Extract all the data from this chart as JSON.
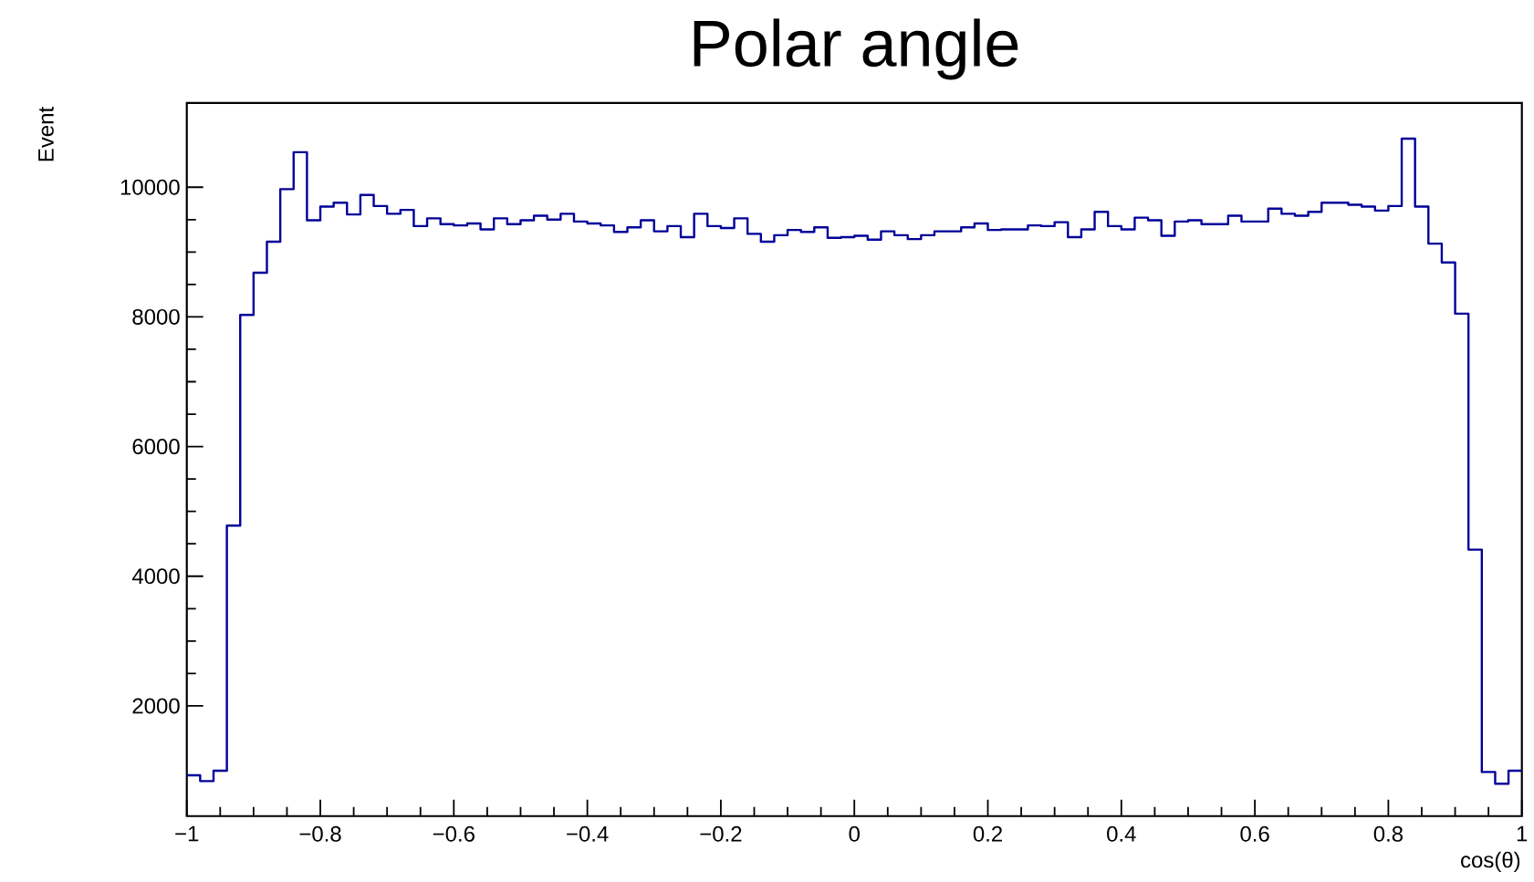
{
  "chart_data": {
    "type": "histogram",
    "title": "Polar angle",
    "xlabel": "cos(θ)",
    "ylabel": "Event",
    "color": "#000099",
    "bins": [
      -1.0,
      -0.98,
      -0.96,
      -0.94,
      -0.92,
      -0.9,
      -0.88,
      -0.86,
      -0.84,
      -0.82,
      -0.8,
      -0.78,
      -0.76,
      -0.74,
      -0.72,
      -0.7,
      -0.68,
      -0.66,
      -0.64,
      -0.62,
      -0.6,
      -0.58,
      -0.56,
      -0.54,
      -0.52,
      -0.5,
      -0.48,
      -0.46,
      -0.44,
      -0.42,
      -0.4,
      -0.38,
      -0.36,
      -0.34,
      -0.32,
      -0.3,
      -0.28,
      -0.26,
      -0.24,
      -0.22,
      -0.2,
      -0.18,
      -0.16,
      -0.14,
      -0.12,
      -0.1,
      -0.08,
      -0.06,
      -0.04,
      -0.02,
      0.0,
      0.02,
      0.04,
      0.06,
      0.08,
      0.1,
      0.12,
      0.14,
      0.16,
      0.18,
      0.2,
      0.22,
      0.24,
      0.26,
      0.28,
      0.3,
      0.32,
      0.34,
      0.36,
      0.38,
      0.4,
      0.42,
      0.44,
      0.46,
      0.48,
      0.5,
      0.52,
      0.54,
      0.56,
      0.58,
      0.6,
      0.62,
      0.64,
      0.66,
      0.68,
      0.7,
      0.72,
      0.74,
      0.76,
      0.78,
      0.8,
      0.82,
      0.84,
      0.86,
      0.88,
      0.9,
      0.92,
      0.94,
      0.96,
      0.98,
      1.0
    ],
    "values": [
      930,
      840,
      1000,
      4780,
      8030,
      8680,
      9160,
      9970,
      10540,
      9490,
      9700,
      9760,
      9580,
      9880,
      9710,
      9590,
      9650,
      9400,
      9520,
      9430,
      9410,
      9440,
      9350,
      9520,
      9430,
      9490,
      9560,
      9500,
      9590,
      9470,
      9440,
      9410,
      9310,
      9380,
      9490,
      9320,
      9400,
      9230,
      9590,
      9400,
      9370,
      9520,
      9280,
      9160,
      9260,
      9340,
      9310,
      9380,
      9220,
      9230,
      9250,
      9190,
      9320,
      9260,
      9200,
      9260,
      9320,
      9320,
      9380,
      9440,
      9340,
      9350,
      9350,
      9410,
      9400,
      9460,
      9230,
      9350,
      9620,
      9400,
      9350,
      9530,
      9490,
      9250,
      9470,
      9490,
      9430,
      9430,
      9560,
      9470,
      9470,
      9670,
      9590,
      9560,
      9620,
      9760,
      9760,
      9730,
      9700,
      9640,
      9710,
      10750,
      9700,
      9130,
      8840,
      8050,
      4410,
      980,
      800,
      1000
    ],
    "xlim": [
      -1,
      1
    ],
    "ylim": [
      300,
      11300
    ],
    "xticks": [
      {
        "value": -1,
        "label": "−1"
      },
      {
        "value": -0.8,
        "label": "−0.8"
      },
      {
        "value": -0.6,
        "label": "−0.6"
      },
      {
        "value": -0.4,
        "label": "−0.4"
      },
      {
        "value": -0.2,
        "label": "−0.2"
      },
      0,
      0.2,
      0.4,
      0.6,
      0.8,
      1
    ],
    "yticks": [
      2000,
      4000,
      6000,
      8000,
      10000
    ]
  }
}
